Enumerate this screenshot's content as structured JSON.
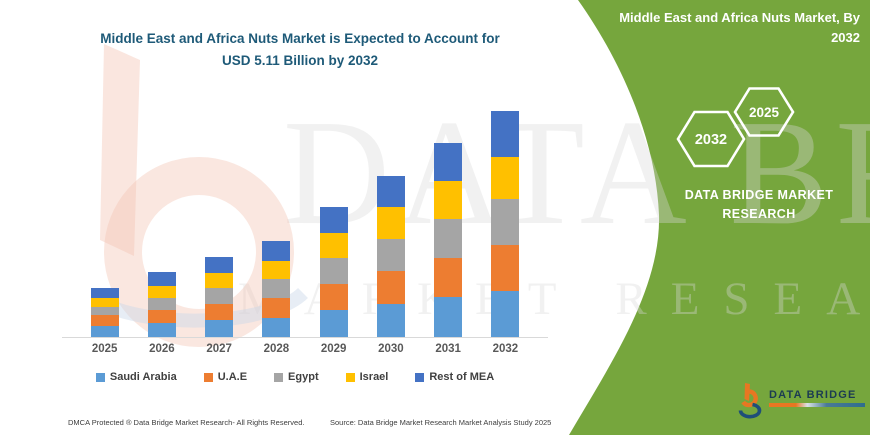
{
  "page": {
    "background": "#ffffff",
    "accent_green": "#76A63D"
  },
  "chart_header": {
    "title_line1": "Middle East and Africa Nuts Market is Expected to Account for",
    "title_line2": "USD 5.11 Billion by 2032"
  },
  "side_panel": {
    "title_line1": "Middle East and Africa Nuts Market, By",
    "title_line2": "2032",
    "hexagon_left_label": "2032",
    "hexagon_right_label": "2025",
    "brand_line1": "DATA BRIDGE MARKET",
    "brand_line2": "RESEARCH",
    "logo_text": "DATA BRIDGE"
  },
  "watermark": {
    "line1": "DATA BRIDGE",
    "line2": "MARKET RESEARCH"
  },
  "footer": {
    "left": "DMCA Protected ® Data Bridge Market Research-  All Rights Reserved.",
    "source": "Source: Data Bridge Market Research  Market Analysis Study 2025"
  },
  "chart_data": {
    "type": "bar",
    "stacked": true,
    "unit": "USD Billion",
    "title": "Middle East and Africa Nuts Market is Expected to Account for USD 5.11 Billion by 2032",
    "categories": [
      "2025",
      "2026",
      "2027",
      "2028",
      "2029",
      "2030",
      "2031",
      "2032"
    ],
    "series": [
      {
        "name": "Saudi Arabia",
        "color": "#5B9BD5",
        "values": [
          0.25,
          0.31,
          0.38,
          0.44,
          0.61,
          0.74,
          0.9,
          1.05
        ]
      },
      {
        "name": "U.A.E",
        "color": "#ED7D31",
        "values": [
          0.24,
          0.3,
          0.37,
          0.45,
          0.6,
          0.75,
          0.89,
          1.03
        ]
      },
      {
        "name": "Egypt",
        "color": "#A5A5A5",
        "values": [
          0.2,
          0.28,
          0.36,
          0.42,
          0.58,
          0.72,
          0.88,
          1.05
        ]
      },
      {
        "name": "Israel",
        "color": "#FFC000",
        "values": [
          0.19,
          0.27,
          0.34,
          0.42,
          0.56,
          0.73,
          0.85,
          0.95
        ]
      },
      {
        "name": "Rest of MEA",
        "color": "#4472C4",
        "values": [
          0.23,
          0.3,
          0.36,
          0.44,
          0.59,
          0.7,
          0.88,
          1.03
        ]
      }
    ],
    "totals": [
      1.11,
      1.46,
      1.81,
      2.17,
      2.94,
      3.64,
      4.4,
      5.11
    ],
    "ylim": [
      0,
      5.45
    ],
    "gridlines": false,
    "y_axis_visible": false,
    "legend_position": "bottom"
  }
}
